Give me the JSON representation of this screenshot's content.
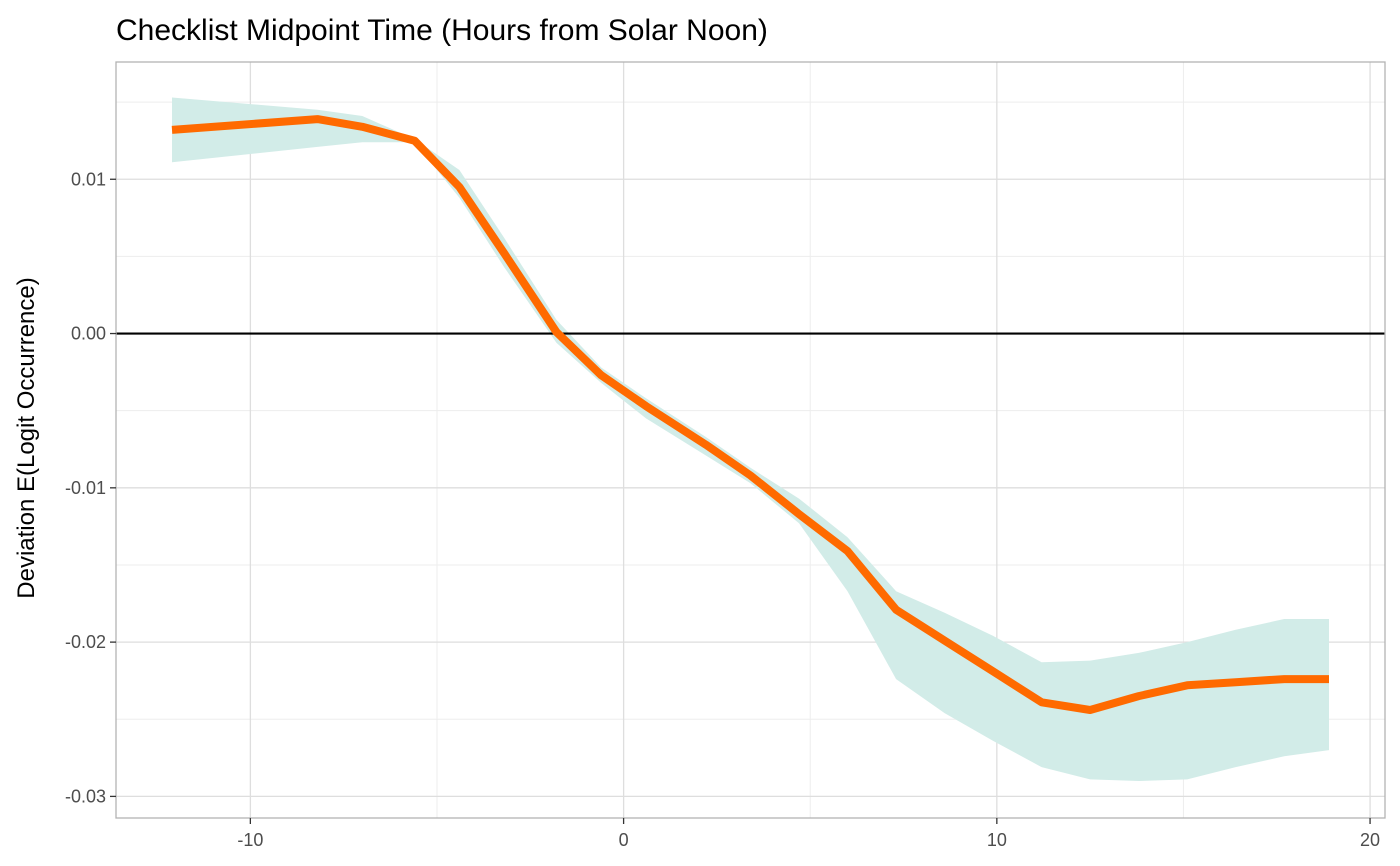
{
  "chart_data": {
    "type": "line",
    "title": "Checklist Midpoint Time (Hours from Solar Noon)",
    "xlabel": "",
    "ylabel": "Deviation E(Logit Occurrence)",
    "xlim": [
      -13.6,
      20.4
    ],
    "ylim": [
      -0.0314,
      0.0176
    ],
    "x_ticks": [
      -10,
      0,
      10,
      20
    ],
    "x_tick_labels": [
      "-10",
      "0",
      "10",
      "20"
    ],
    "y_ticks": [
      -0.03,
      -0.02,
      -0.01,
      0.0,
      0.01
    ],
    "y_tick_labels": [
      "-0.03",
      "-0.02",
      "-0.01",
      "0.00",
      "0.01"
    ],
    "grid": true,
    "reference_line_y": 0,
    "colors": {
      "line": "#ff6a00",
      "band": "#d2ece8",
      "reference": "#000000",
      "grid_major": "#dedede",
      "grid_minor": "#ededed",
      "border": "#b3b3b3"
    },
    "series": [
      {
        "x": [
          -12.1,
          -8.2,
          -7.0,
          -5.6,
          -4.4,
          -3.2,
          -1.8,
          -0.6,
          0.6,
          2.2,
          3.4,
          4.7,
          6.0,
          7.3,
          8.6,
          9.9,
          11.2,
          12.5,
          13.8,
          15.1,
          16.4,
          17.7,
          18.9
        ],
        "y": [
          0.0132,
          0.0139,
          0.0134,
          0.0125,
          0.0095,
          0.0052,
          0.0001,
          -0.0027,
          -0.0047,
          -0.0072,
          -0.0092,
          -0.0117,
          -0.0141,
          -0.0179,
          -0.0199,
          -0.0219,
          -0.0239,
          -0.0244,
          -0.0235,
          -0.0228,
          -0.0226,
          -0.0224,
          -0.0224
        ],
        "lower": [
          0.0111,
          0.0121,
          0.0124,
          0.0124,
          0.0088,
          0.0043,
          -0.0006,
          -0.0032,
          -0.0055,
          -0.0079,
          -0.0097,
          -0.0123,
          -0.0167,
          -0.0224,
          -0.0246,
          -0.0264,
          -0.0281,
          -0.0289,
          -0.029,
          -0.0289,
          -0.0281,
          -0.0274,
          -0.027
        ],
        "upper": [
          0.0153,
          0.0145,
          0.0141,
          0.0126,
          0.0106,
          0.0062,
          0.0009,
          -0.0022,
          -0.0042,
          -0.0067,
          -0.0087,
          -0.0107,
          -0.0132,
          -0.0167,
          -0.0181,
          -0.0196,
          -0.0213,
          -0.0212,
          -0.0207,
          -0.02,
          -0.0192,
          -0.0185,
          -0.0185
        ]
      }
    ]
  }
}
